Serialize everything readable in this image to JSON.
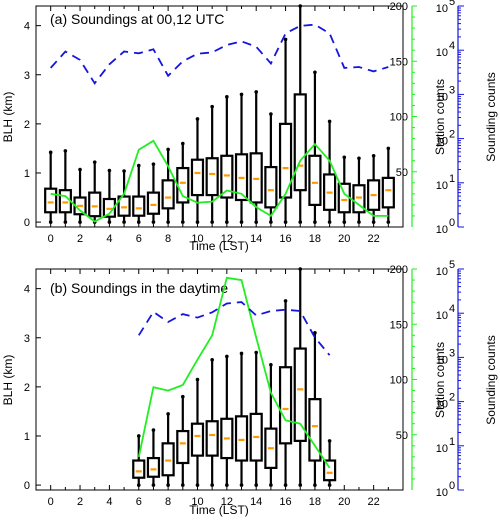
{
  "chart_data": [
    {
      "type": "box",
      "title": "(a) Soundings at 00,12 UTC",
      "xlabel": "Time (LST)",
      "ylabel": "BLH (km)",
      "ylabel_right1": "Station counts",
      "ylabel_right2": "Sounding counts",
      "xlim": [
        -1,
        24
      ],
      "ylim": [
        -0.1,
        4.4
      ],
      "station_ylim": [
        0,
        200
      ],
      "sounding_ylim_log": [
        0,
        5
      ],
      "x_ticks": [
        0,
        2,
        4,
        6,
        8,
        10,
        12,
        14,
        16,
        18,
        20,
        22
      ],
      "y_ticks": [
        0,
        1,
        2,
        3,
        4
      ],
      "station_ticks": [
        50,
        100,
        150,
        200
      ],
      "sounding_ticks": [
        "10",
        "10",
        "10",
        "10",
        "10",
        "10"
      ],
      "sounding_exponents": [
        "0",
        "1",
        "2",
        "3",
        "4",
        "5"
      ],
      "boxes": [
        {
          "x": 0,
          "wlo": 0.0,
          "q1": 0.2,
          "med": 0.4,
          "q3": 0.68,
          "whi": 1.42
        },
        {
          "x": 1,
          "wlo": 0.0,
          "q1": 0.2,
          "med": 0.4,
          "q3": 0.65,
          "whi": 1.45
        },
        {
          "x": 2,
          "wlo": 0.0,
          "q1": 0.16,
          "med": 0.33,
          "q3": 0.5,
          "whi": 1.07
        },
        {
          "x": 3,
          "wlo": 0.0,
          "q1": 0.12,
          "med": 0.32,
          "q3": 0.6,
          "whi": 1.22
        },
        {
          "x": 4,
          "wlo": 0.0,
          "q1": 0.11,
          "med": 0.27,
          "q3": 0.47,
          "whi": 1.05
        },
        {
          "x": 5,
          "wlo": 0.0,
          "q1": 0.13,
          "med": 0.3,
          "q3": 0.52,
          "whi": 1.04
        },
        {
          "x": 6,
          "wlo": 0.0,
          "q1": 0.13,
          "med": 0.28,
          "q3": 0.52,
          "whi": 1.15
        },
        {
          "x": 7,
          "wlo": 0.0,
          "q1": 0.17,
          "med": 0.35,
          "q3": 0.6,
          "whi": 1.18
        },
        {
          "x": 8,
          "wlo": 0.0,
          "q1": 0.28,
          "med": 0.5,
          "q3": 0.85,
          "whi": 1.48
        },
        {
          "x": 9,
          "wlo": 0.0,
          "q1": 0.4,
          "med": 0.8,
          "q3": 1.1,
          "whi": 1.6
        },
        {
          "x": 10,
          "wlo": 0.0,
          "q1": 0.55,
          "med": 1.0,
          "q3": 1.27,
          "whi": 2.1
        },
        {
          "x": 11,
          "wlo": 0.0,
          "q1": 0.55,
          "med": 0.98,
          "q3": 1.3,
          "whi": 2.35
        },
        {
          "x": 12,
          "wlo": 0.0,
          "q1": 0.5,
          "med": 0.95,
          "q3": 1.35,
          "whi": 2.55
        },
        {
          "x": 13,
          "wlo": 0.0,
          "q1": 0.45,
          "med": 0.9,
          "q3": 1.38,
          "whi": 2.6
        },
        {
          "x": 14,
          "wlo": 0.0,
          "q1": 0.4,
          "med": 0.88,
          "q3": 1.4,
          "whi": 2.65
        },
        {
          "x": 15,
          "wlo": 0.0,
          "q1": 0.3,
          "med": 0.65,
          "q3": 1.12,
          "whi": 2.2
        },
        {
          "x": 16,
          "wlo": 0.0,
          "q1": 0.5,
          "med": 1.1,
          "q3": 2.0,
          "whi": 3.72
        },
        {
          "x": 17,
          "wlo": 0.0,
          "q1": 0.65,
          "med": 1.15,
          "q3": 2.6,
          "whi": 4.4
        },
        {
          "x": 18,
          "wlo": 0.0,
          "q1": 0.35,
          "med": 0.8,
          "q3": 1.35,
          "whi": 3.05
        },
        {
          "x": 19,
          "wlo": 0.0,
          "q1": 0.25,
          "med": 0.6,
          "q3": 0.97,
          "whi": 2.05
        },
        {
          "x": 20,
          "wlo": 0.0,
          "q1": 0.2,
          "med": 0.45,
          "q3": 0.78,
          "whi": 1.32
        },
        {
          "x": 21,
          "wlo": 0.0,
          "q1": 0.2,
          "med": 0.5,
          "q3": 0.75,
          "whi": 1.3
        },
        {
          "x": 22,
          "wlo": 0.0,
          "q1": 0.25,
          "med": 0.55,
          "q3": 0.85,
          "whi": 1.35
        },
        {
          "x": 23,
          "wlo": 0.0,
          "q1": 0.3,
          "med": 0.65,
          "q3": 0.9,
          "whi": 1.5
        }
      ],
      "station_counts": [
        [
          0,
          30
        ],
        [
          1,
          28
        ],
        [
          2,
          15
        ],
        [
          3,
          5
        ],
        [
          4,
          12
        ],
        [
          5,
          30
        ],
        [
          6,
          70
        ],
        [
          7,
          78
        ],
        [
          8,
          55
        ],
        [
          9,
          28
        ],
        [
          10,
          22
        ],
        [
          11,
          23
        ],
        [
          12,
          33
        ],
        [
          13,
          30
        ],
        [
          14,
          18
        ],
        [
          15,
          10
        ],
        [
          16,
          30
        ],
        [
          17,
          60
        ],
        [
          18,
          75
        ],
        [
          19,
          60
        ],
        [
          20,
          30
        ],
        [
          21,
          20
        ],
        [
          22,
          10
        ],
        [
          23,
          10
        ]
      ],
      "sounding_counts": [
        [
          0,
          3.6
        ],
        [
          1,
          3.97
        ],
        [
          2,
          3.78
        ],
        [
          3,
          3.25
        ],
        [
          4,
          3.68
        ],
        [
          5,
          3.97
        ],
        [
          6,
          3.93
        ],
        [
          7,
          4.02
        ],
        [
          8,
          3.42
        ],
        [
          9,
          3.75
        ],
        [
          10,
          3.92
        ],
        [
          11,
          3.95
        ],
        [
          12,
          4.12
        ],
        [
          13,
          4.2
        ],
        [
          14,
          4.08
        ],
        [
          15,
          3.7
        ],
        [
          16,
          4.38
        ],
        [
          17,
          4.55
        ],
        [
          18,
          4.58
        ],
        [
          19,
          4.38
        ],
        [
          20,
          3.6
        ],
        [
          21,
          3.62
        ],
        [
          22,
          3.52
        ],
        [
          23,
          3.62
        ]
      ]
    },
    {
      "type": "box",
      "title": "(b) Soundings in the daytime",
      "xlabel": "Time (LST)",
      "ylabel": "BLH (km)",
      "ylabel_right1": "Station counts",
      "ylabel_right2": "Sounding counts",
      "xlim": [
        -1,
        24
      ],
      "ylim": [
        -0.1,
        4.4
      ],
      "station_ylim": [
        0,
        200
      ],
      "sounding_ylim_log": [
        0,
        5
      ],
      "x_ticks": [
        0,
        2,
        4,
        6,
        8,
        10,
        12,
        14,
        16,
        18,
        20,
        22
      ],
      "y_ticks": [
        0,
        1,
        2,
        3,
        4
      ],
      "station_ticks": [
        50,
        100,
        150,
        200
      ],
      "sounding_ticks": [
        "10",
        "10",
        "10",
        "10",
        "10",
        "10"
      ],
      "sounding_exponents": [
        "0",
        "1",
        "2",
        "3",
        "4",
        "5"
      ],
      "boxes": [
        {
          "x": 6,
          "wlo": 0.0,
          "q1": 0.15,
          "med": 0.28,
          "q3": 0.5,
          "whi": 1.0
        },
        {
          "x": 7,
          "wlo": 0.0,
          "q1": 0.17,
          "med": 0.32,
          "q3": 0.55,
          "whi": 1.12
        },
        {
          "x": 8,
          "wlo": 0.0,
          "q1": 0.2,
          "med": 0.5,
          "q3": 0.85,
          "whi": 1.45
        },
        {
          "x": 9,
          "wlo": 0.0,
          "q1": 0.45,
          "med": 0.85,
          "q3": 1.1,
          "whi": 1.8
        },
        {
          "x": 10,
          "wlo": 0.0,
          "q1": 0.6,
          "med": 1.0,
          "q3": 1.25,
          "whi": 2.15
        },
        {
          "x": 11,
          "wlo": 0.0,
          "q1": 0.6,
          "med": 1.02,
          "q3": 1.3,
          "whi": 2.55
        },
        {
          "x": 12,
          "wlo": 0.0,
          "q1": 0.55,
          "med": 0.95,
          "q3": 1.35,
          "whi": 2.62
        },
        {
          "x": 13,
          "wlo": 0.0,
          "q1": 0.5,
          "med": 0.92,
          "q3": 1.4,
          "whi": 2.68
        },
        {
          "x": 14,
          "wlo": 0.0,
          "q1": 0.5,
          "med": 0.98,
          "q3": 1.45,
          "whi": 2.7
        },
        {
          "x": 15,
          "wlo": 0.0,
          "q1": 0.35,
          "med": 0.75,
          "q3": 1.15,
          "whi": 2.45
        },
        {
          "x": 16,
          "wlo": 0.0,
          "q1": 0.85,
          "med": 1.55,
          "q3": 2.4,
          "whi": 3.75
        },
        {
          "x": 17,
          "wlo": 0.0,
          "q1": 0.9,
          "med": 1.95,
          "q3": 2.78,
          "whi": 4.4
        },
        {
          "x": 18,
          "wlo": 0.0,
          "q1": 0.5,
          "med": 1.2,
          "q3": 1.75,
          "whi": 3.1
        },
        {
          "x": 19,
          "wlo": 0.0,
          "q1": 0.1,
          "med": 0.25,
          "q3": 0.5,
          "whi": 0.9
        }
      ],
      "station_counts": [
        [
          6,
          30
        ],
        [
          7,
          93
        ],
        [
          8,
          90
        ],
        [
          9,
          95
        ],
        [
          10,
          118
        ],
        [
          11,
          140
        ],
        [
          12,
          192
        ],
        [
          13,
          190
        ],
        [
          14,
          138
        ],
        [
          15,
          88
        ],
        [
          16,
          63
        ],
        [
          17,
          60
        ],
        [
          18,
          40
        ],
        [
          19,
          20
        ]
      ],
      "sounding_counts": [
        [
          6,
          3.5
        ],
        [
          7,
          4.03
        ],
        [
          8,
          3.8
        ],
        [
          9,
          3.98
        ],
        [
          10,
          3.9
        ],
        [
          11,
          4.02
        ],
        [
          12,
          4.22
        ],
        [
          13,
          4.25
        ],
        [
          14,
          3.95
        ],
        [
          15,
          4.05
        ],
        [
          16,
          4.08
        ],
        [
          17,
          4.05
        ],
        [
          18,
          3.45
        ],
        [
          19,
          3.05
        ]
      ]
    }
  ],
  "colors": {
    "box": "#000000",
    "median": "#ff9900",
    "station": "#22ee22",
    "sounding": "#1515dd"
  }
}
